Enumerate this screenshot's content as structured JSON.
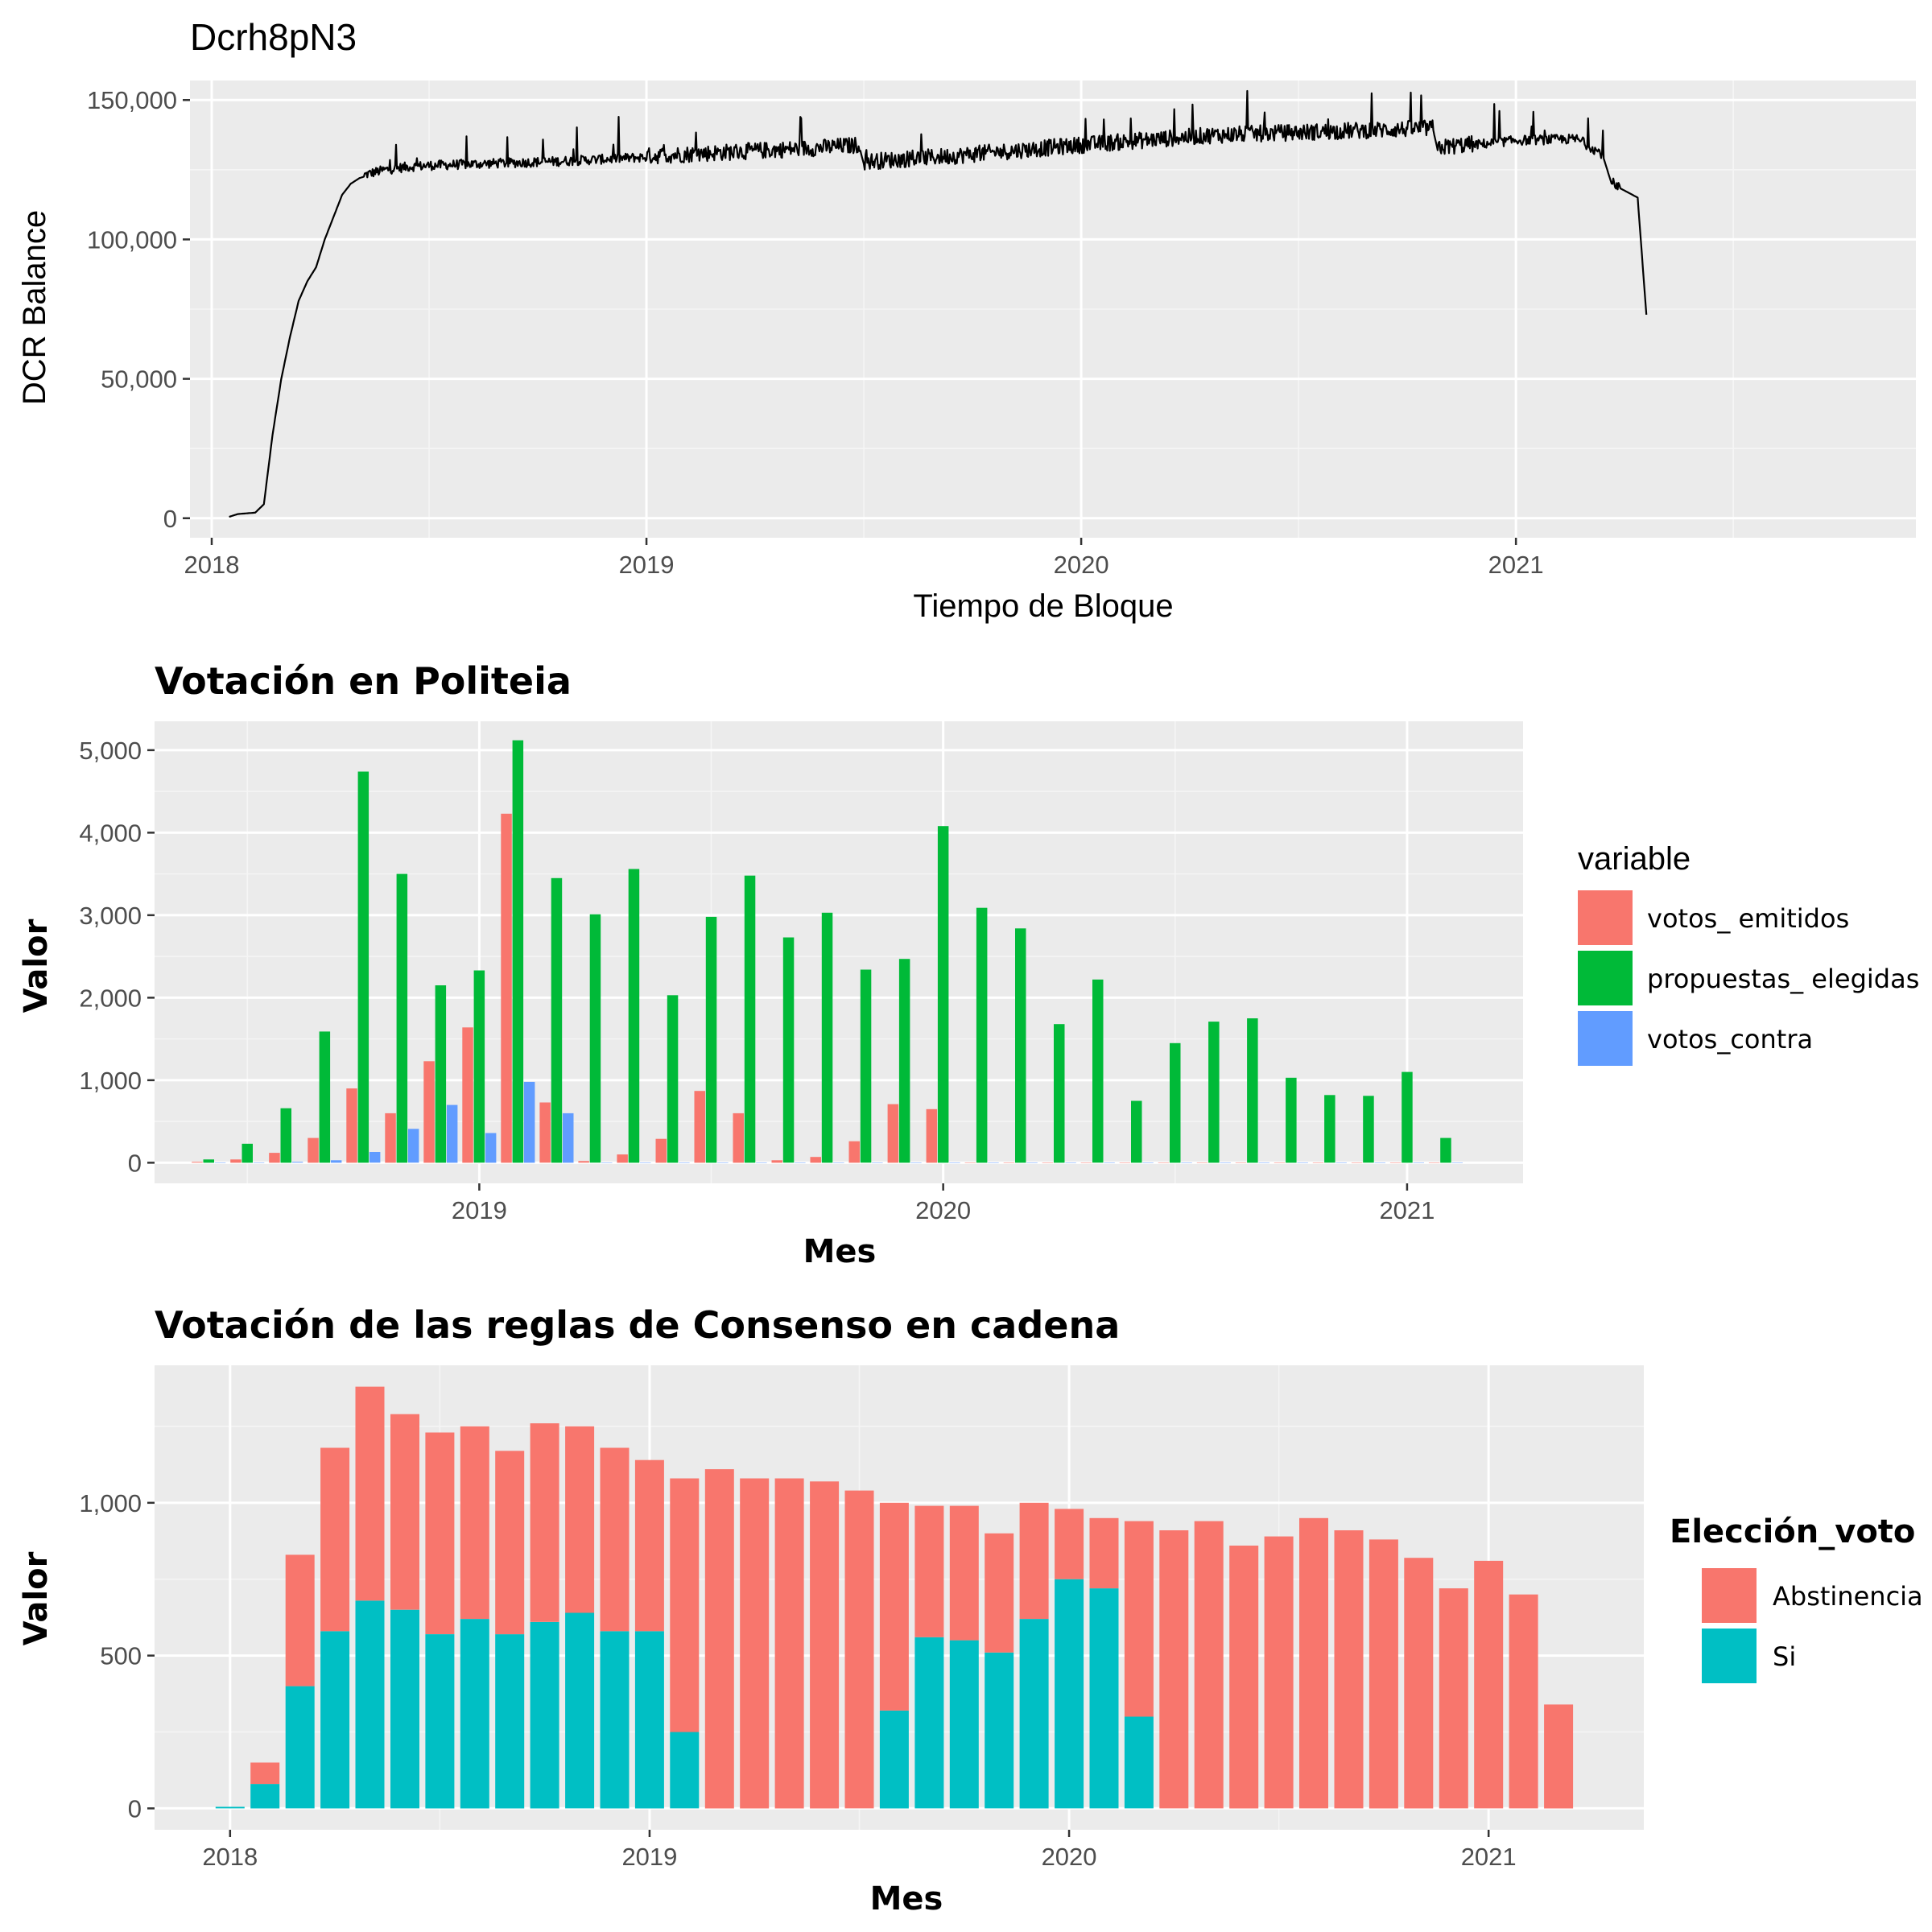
{
  "colors": {
    "panel_bg": "#EBEBEB",
    "grid_major": "#FFFFFF",
    "grid_minor": "#F5F5F5",
    "tick": "#333333",
    "line": "#000000",
    "votos_emitidos": "#F8766D",
    "propuestas_elegidas": "#00BA38",
    "votos_contra": "#619CFF",
    "Abstinencia": "#F8766D",
    "Si": "#00BFC4"
  },
  "chart_data": [
    {
      "type": "line",
      "title": "Dcrh8pN3",
      "xlabel": "Tiempo de Bloque",
      "ylabel": "DCR Balance",
      "xlim": [
        2017.95,
        2021.92
      ],
      "ylim": [
        -7000,
        157000
      ],
      "x_ticks": [
        2018,
        2019,
        2020,
        2021
      ],
      "x_tick_labels": [
        "2018",
        "2019",
        "2020",
        "2021"
      ],
      "y_ticks": [
        0,
        50000,
        100000,
        150000
      ],
      "y_tick_labels": [
        "0",
        "50,000",
        "100,000",
        "150,000"
      ],
      "series": [
        {
          "x": [
            2018.04,
            2018.06,
            2018.1,
            2018.12,
            2018.14,
            2018.16,
            2018.18,
            2018.2,
            2018.22,
            2018.24,
            2018.26,
            2018.28,
            2018.3,
            2018.32,
            2018.34,
            2018.36,
            2018.4,
            2018.45,
            2018.5,
            2018.6,
            2018.8,
            2019.0,
            2019.2,
            2019.4,
            2019.49,
            2019.5,
            2019.7,
            2020.0,
            2020.3,
            2020.6,
            2020.81,
            2020.82,
            2021.0,
            2021.14,
            2021.2,
            2021.22,
            2021.28,
            2021.3
          ],
          "y": [
            500,
            1500,
            2000,
            5000,
            30000,
            50000,
            65000,
            78000,
            85000,
            90000,
            100000,
            108000,
            116000,
            120000,
            122000,
            123000,
            124500,
            125500,
            126000,
            126500,
            127500,
            129000,
            130500,
            132000,
            133000,
            127000,
            129000,
            133000,
            136500,
            138000,
            139000,
            132000,
            135000,
            135500,
            130000,
            120000,
            115000,
            73000
          ]
        }
      ]
    },
    {
      "type": "bar",
      "title": "Votación en Politeia",
      "xlabel": "Mes",
      "ylabel": "Valor",
      "xlim": [
        2018.3,
        2021.25
      ],
      "ylim": [
        -250,
        5350
      ],
      "x_ticks": [
        2019,
        2020,
        2021
      ],
      "x_tick_labels": [
        "2019",
        "2020",
        "2021"
      ],
      "y_ticks": [
        0,
        1000,
        2000,
        3000,
        4000,
        5000
      ],
      "y_tick_labels": [
        "0",
        "1,000",
        "2,000",
        "3,000",
        "4,000",
        "5,000"
      ],
      "legend_title": "variable",
      "legend_position": "right",
      "x": [
        2018.4167,
        2018.5,
        2018.5833,
        2018.6667,
        2018.75,
        2018.8333,
        2018.9167,
        2019.0,
        2019.0833,
        2019.1667,
        2019.25,
        2019.3333,
        2019.4167,
        2019.5,
        2019.5833,
        2019.6667,
        2019.75,
        2019.8333,
        2019.9167,
        2020.0,
        2020.0833,
        2020.1667,
        2020.25,
        2020.3333,
        2020.4167,
        2020.5,
        2020.5833,
        2020.6667,
        2020.75,
        2020.8333,
        2020.9167,
        2021.0,
        2021.0833
      ],
      "series": [
        {
          "name": "votos_ emitidos",
          "values": [
            10,
            40,
            120,
            300,
            900,
            600,
            1230,
            1640,
            4230,
            730,
            20,
            100,
            290,
            870,
            600,
            30,
            70,
            260,
            710,
            650,
            0,
            0,
            0,
            0,
            0,
            0,
            0,
            0,
            0,
            0,
            0,
            0,
            0
          ]
        },
        {
          "name": "propuestas_ elegidas",
          "values": [
            40,
            230,
            660,
            1590,
            4740,
            3500,
            2150,
            2330,
            5120,
            3450,
            3010,
            3560,
            2030,
            2980,
            3480,
            2730,
            3030,
            2340,
            2470,
            4080,
            3090,
            2840,
            1680,
            2220,
            750,
            1450,
            1710,
            1750,
            1030,
            820,
            810,
            1100,
            300
          ]
        },
        {
          "name": "votos_contra",
          "values": [
            0,
            0,
            10,
            30,
            130,
            410,
            700,
            360,
            980,
            600,
            0,
            0,
            0,
            0,
            0,
            0,
            0,
            0,
            0,
            0,
            0,
            0,
            0,
            0,
            0,
            0,
            0,
            0,
            0,
            0,
            0,
            0,
            0
          ]
        }
      ]
    },
    {
      "type": "bar",
      "stacked": true,
      "title": "Votación de las reglas de Consenso en cadena",
      "xlabel": "Mes",
      "ylabel": "Valor",
      "xlim": [
        2017.82,
        2021.37
      ],
      "ylim": [
        -70,
        1450
      ],
      "x_ticks": [
        2018,
        2019,
        2020,
        2021
      ],
      "x_tick_labels": [
        "2018",
        "2019",
        "2020",
        "2021"
      ],
      "y_ticks": [
        0,
        500,
        1000
      ],
      "y_tick_labels": [
        "0",
        "500",
        "1,000"
      ],
      "legend_title": "Elección_voto",
      "legend_position": "right",
      "x": [
        2018.0,
        2018.0833,
        2018.1667,
        2018.25,
        2018.3333,
        2018.4167,
        2018.5,
        2018.5833,
        2018.6667,
        2018.75,
        2018.8333,
        2018.9167,
        2019.0,
        2019.0833,
        2019.1667,
        2019.25,
        2019.3333,
        2019.4167,
        2019.5,
        2019.5833,
        2019.6667,
        2019.75,
        2019.8333,
        2019.9167,
        2020.0,
        2020.0833,
        2020.1667,
        2020.25,
        2020.3333,
        2020.4167,
        2020.5,
        2020.5833,
        2020.6667,
        2020.75,
        2020.8333,
        2020.9167,
        2021.0,
        2021.0833,
        2021.1667
      ],
      "series": [
        {
          "name": "Abstinencia",
          "values": [
            0,
            70,
            430,
            600,
            700,
            640,
            660,
            630,
            600,
            650,
            610,
            600,
            560,
            830,
            1110,
            1080,
            1080,
            1070,
            1040,
            680,
            430,
            440,
            390,
            380,
            230,
            230,
            640,
            910,
            940,
            860,
            890,
            950,
            910,
            880,
            820,
            720,
            810,
            700,
            340
          ]
        },
        {
          "name": "Si",
          "values": [
            5,
            80,
            400,
            580,
            680,
            650,
            570,
            620,
            570,
            610,
            640,
            580,
            580,
            250,
            0,
            0,
            0,
            0,
            0,
            320,
            560,
            550,
            510,
            620,
            750,
            720,
            300,
            0,
            0,
            0,
            0,
            0,
            0,
            0,
            0,
            0,
            0,
            0,
            0
          ]
        }
      ]
    }
  ]
}
